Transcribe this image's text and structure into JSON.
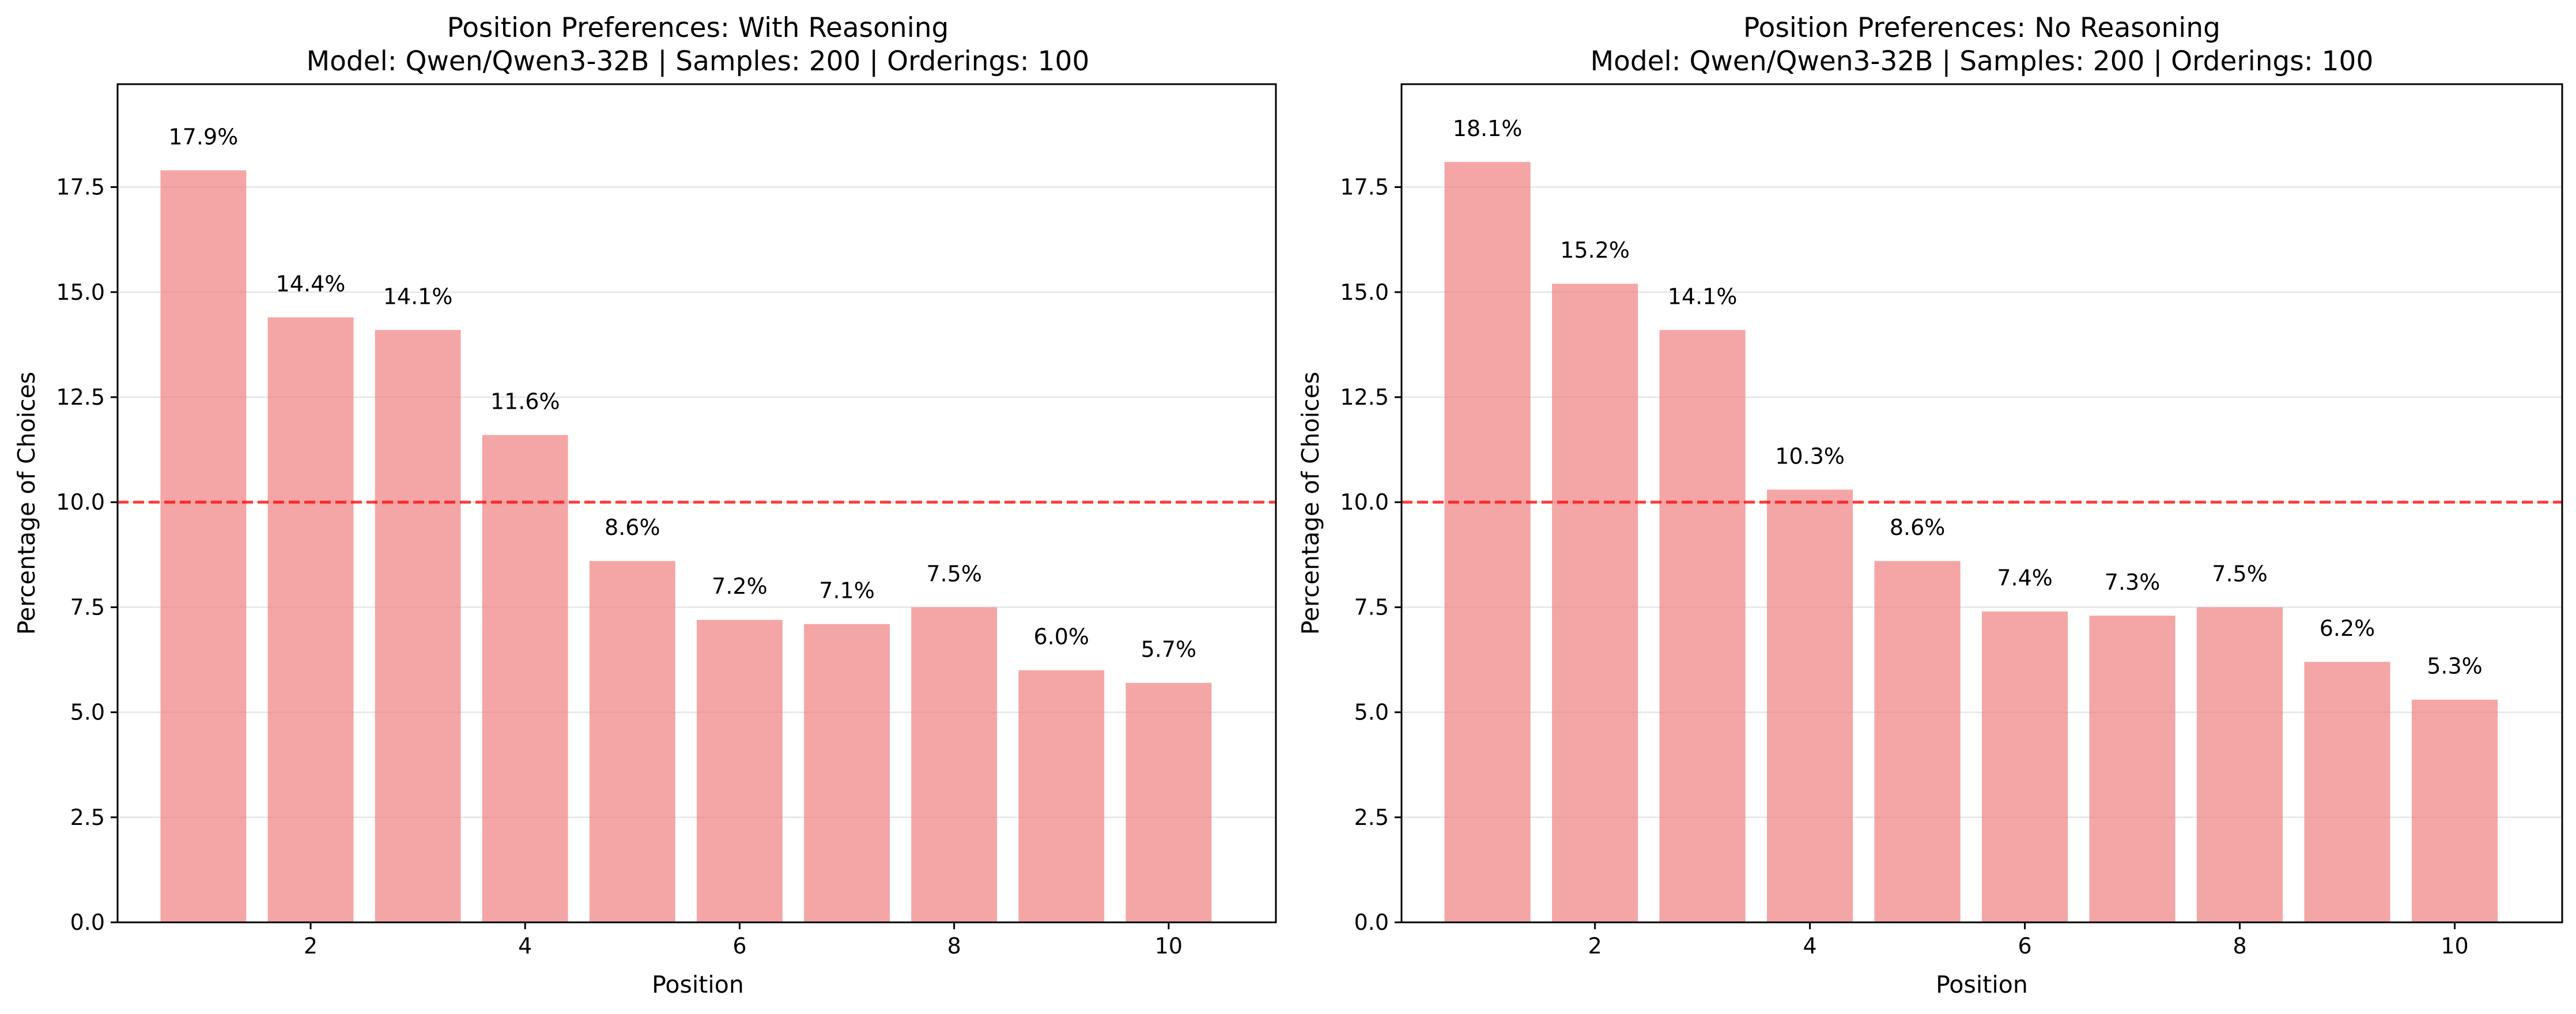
{
  "colors": {
    "bar": "#f08080",
    "reference_line": "#ff0000",
    "grid": "#e6e6e6",
    "axes": "#000000"
  },
  "chart_data": [
    {
      "type": "bar",
      "title": "Position Preferences: With Reasoning",
      "subtitle": "Model: Qwen/Qwen3-32B | Samples: 200 | Orderings: 100",
      "xlabel": "Position",
      "ylabel": "Percentage of Choices",
      "x": [
        1,
        2,
        3,
        4,
        5,
        6,
        7,
        8,
        9,
        10
      ],
      "values": [
        17.9,
        14.4,
        14.1,
        11.6,
        8.6,
        7.2,
        7.1,
        7.5,
        6.0,
        5.7
      ],
      "data_labels": [
        "17.9%",
        "14.4%",
        "14.1%",
        "11.6%",
        "8.6%",
        "7.2%",
        "7.1%",
        "7.5%",
        "6.0%",
        "5.7%"
      ],
      "xticks": [
        "2",
        "4",
        "6",
        "8",
        "10"
      ],
      "xtick_values": [
        2,
        4,
        6,
        8,
        10
      ],
      "yticks": [
        "0.0",
        "2.5",
        "5.0",
        "7.5",
        "10.0",
        "12.5",
        "15.0",
        "17.5"
      ],
      "ytick_values": [
        0,
        2.5,
        5,
        7.5,
        10,
        12.5,
        15,
        17.5
      ],
      "xlim": [
        0.2,
        11.0
      ],
      "ylim": [
        0,
        19.95
      ],
      "reference_line": {
        "y": 10.0,
        "style": "dashed"
      },
      "grid": "horizontal"
    },
    {
      "type": "bar",
      "title": "Position Preferences: No Reasoning",
      "subtitle": "Model: Qwen/Qwen3-32B | Samples: 200 | Orderings: 100",
      "xlabel": "Position",
      "ylabel": "Percentage of Choices",
      "x": [
        1,
        2,
        3,
        4,
        5,
        6,
        7,
        8,
        9,
        10
      ],
      "values": [
        18.1,
        15.2,
        14.1,
        10.3,
        8.6,
        7.4,
        7.3,
        7.5,
        6.2,
        5.3
      ],
      "data_labels": [
        "18.1%",
        "15.2%",
        "14.1%",
        "10.3%",
        "8.6%",
        "7.4%",
        "7.3%",
        "7.5%",
        "6.2%",
        "5.3%"
      ],
      "xticks": [
        "2",
        "4",
        "6",
        "8",
        "10"
      ],
      "xtick_values": [
        2,
        4,
        6,
        8,
        10
      ],
      "yticks": [
        "0.0",
        "2.5",
        "5.0",
        "7.5",
        "10.0",
        "12.5",
        "15.0",
        "17.5"
      ],
      "ytick_values": [
        0,
        2.5,
        5,
        7.5,
        10,
        12.5,
        15,
        17.5
      ],
      "xlim": [
        0.2,
        11.0
      ],
      "ylim": [
        0,
        19.95
      ],
      "reference_line": {
        "y": 10.0,
        "style": "dashed"
      },
      "grid": "horizontal"
    }
  ]
}
